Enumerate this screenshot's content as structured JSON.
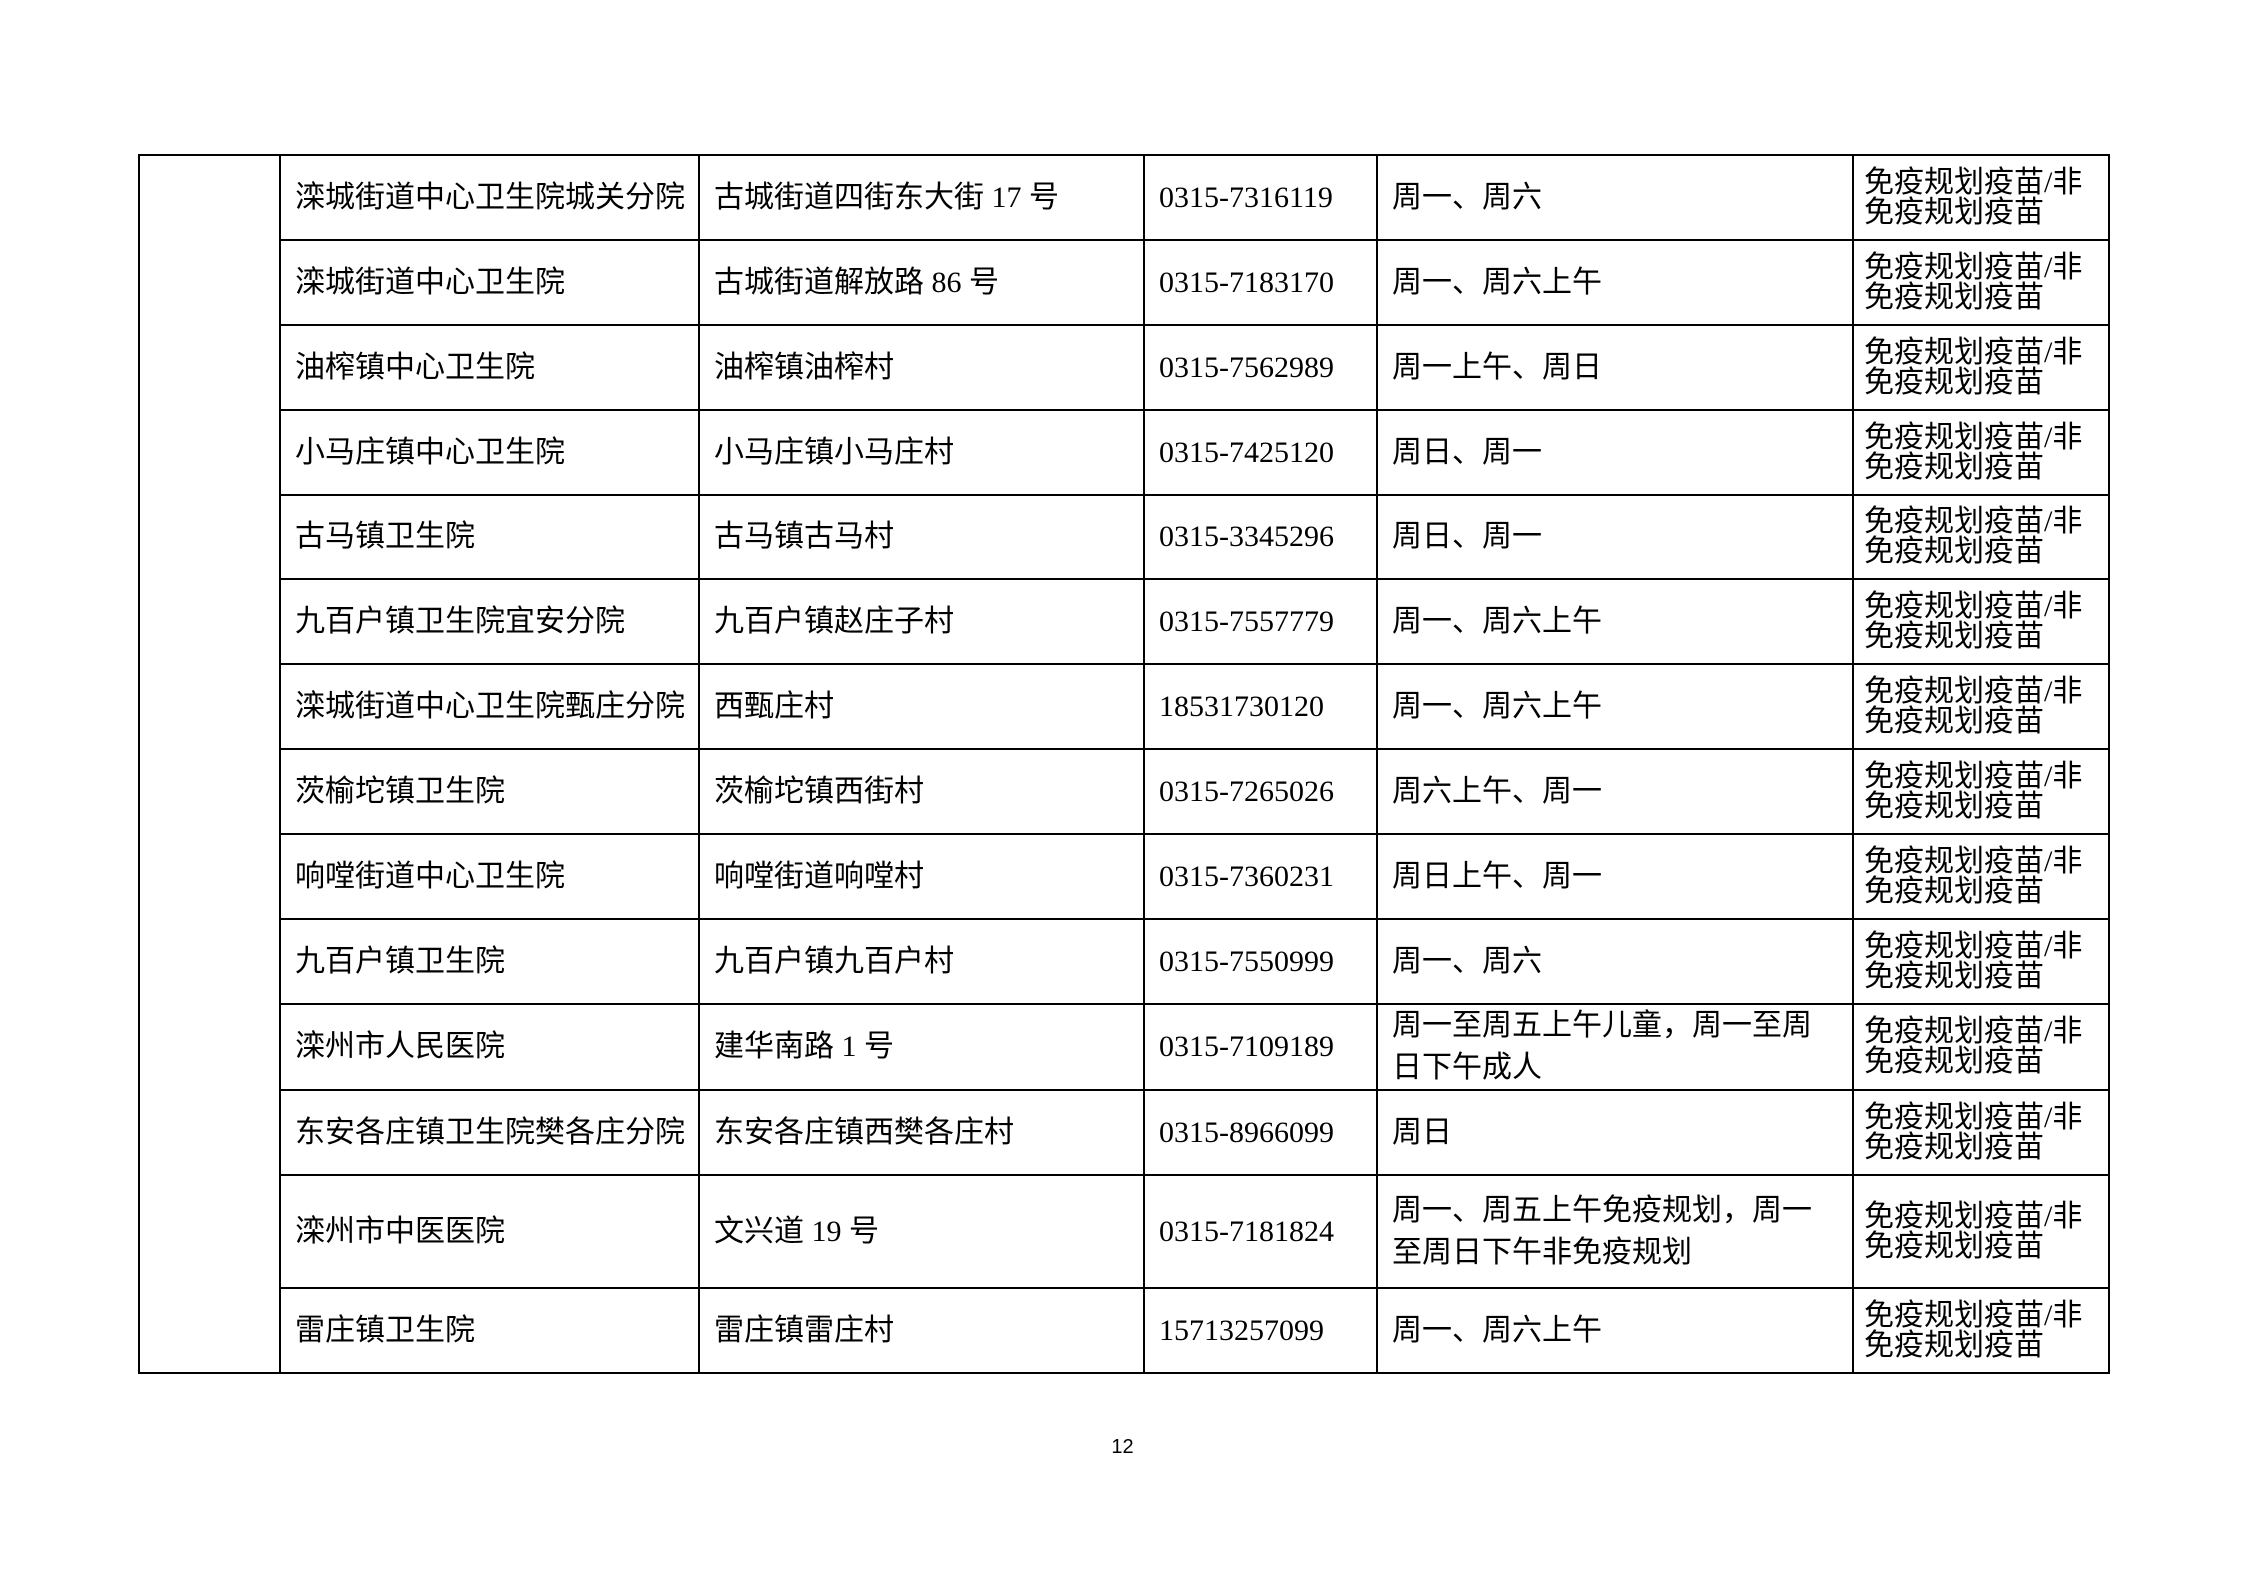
{
  "rows": [
    {
      "name": "滦城街道中心卫生院城关分院",
      "address": "古城街道四街东大街 17 号",
      "phone": "0315-7316119",
      "time": "周一、周六",
      "vaccine": "免疫规划疫苗/非免疫规划疫苗"
    },
    {
      "name": "滦城街道中心卫生院",
      "address": "古城街道解放路 86 号",
      "phone": "0315-7183170",
      "time": "周一、周六上午",
      "vaccine": "免疫规划疫苗/非免疫规划疫苗"
    },
    {
      "name": "油榨镇中心卫生院",
      "address": "油榨镇油榨村",
      "phone": "0315-7562989",
      "time": "周一上午、周日",
      "vaccine": "免疫规划疫苗/非免疫规划疫苗"
    },
    {
      "name": "小马庄镇中心卫生院",
      "address": "小马庄镇小马庄村",
      "phone": "0315-7425120",
      "time": "周日、周一",
      "vaccine": "免疫规划疫苗/非免疫规划疫苗"
    },
    {
      "name": "古马镇卫生院",
      "address": "古马镇古马村",
      "phone": "0315-3345296",
      "time": "周日、周一",
      "vaccine": "免疫规划疫苗/非免疫规划疫苗"
    },
    {
      "name": "九百户镇卫生院宜安分院",
      "address": "九百户镇赵庄子村",
      "phone": "0315-7557779",
      "time": "周一、周六上午",
      "vaccine": "免疫规划疫苗/非免疫规划疫苗"
    },
    {
      "name": "滦城街道中心卫生院甄庄分院",
      "address": "西甄庄村",
      "phone": "18531730120",
      "time": "周一、周六上午",
      "vaccine": "免疫规划疫苗/非免疫规划疫苗"
    },
    {
      "name": "茨榆坨镇卫生院",
      "address": "茨榆坨镇西街村",
      "phone": "0315-7265026",
      "time": "周六上午、周一",
      "vaccine": "免疫规划疫苗/非免疫规划疫苗"
    },
    {
      "name": "响嘡街道中心卫生院",
      "address": "响嘡街道响嘡村",
      "phone": "0315-7360231",
      "time": "周日上午、周一",
      "vaccine": "免疫规划疫苗/非免疫规划疫苗"
    },
    {
      "name": "九百户镇卫生院",
      "address": "九百户镇九百户村",
      "phone": "0315-7550999",
      "time": "周一、周六",
      "vaccine": "免疫规划疫苗/非免疫规划疫苗"
    },
    {
      "name": "滦州市人民医院",
      "address": "建华南路 1 号",
      "phone": "0315-7109189",
      "time": "周一至周五上午儿童，周一至周日下午成人",
      "vaccine": "免疫规划疫苗/非免疫规划疫苗"
    },
    {
      "name": "东安各庄镇卫生院樊各庄分院",
      "address": "东安各庄镇西樊各庄村",
      "phone": "0315-8966099",
      "time": "周日",
      "vaccine": "免疫规划疫苗/非免疫规划疫苗"
    },
    {
      "name": "滦州市中医医院",
      "address": "文兴道 19 号",
      "phone": "0315-7181824",
      "time": "周一、周五上午免疫规划，周一至周日下午非免疫规划",
      "vaccine": "免疫规划疫苗/非免疫规划疫苗"
    },
    {
      "name": "雷庄镇卫生院",
      "address": "雷庄镇雷庄村",
      "phone": "15713257099",
      "time": "周一、周六上午",
      "vaccine": "免疫规划疫苗/非免疫规划疫苗"
    }
  ],
  "page_number": "12"
}
